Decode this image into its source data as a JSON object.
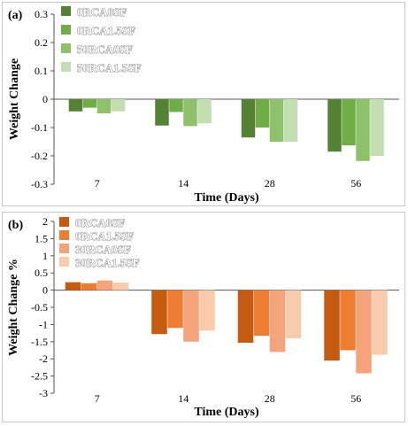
{
  "chart_data": [
    {
      "type": "bar",
      "panel_label": "(a)",
      "categories": [
        "7",
        "14",
        "28",
        "56"
      ],
      "series": [
        {
          "name": "0RCA0SF",
          "color": "#548235",
          "values": [
            -0.043,
            -0.093,
            -0.135,
            -0.185
          ]
        },
        {
          "name": "0RCA1.5SF",
          "color": "#70ad47",
          "values": [
            -0.03,
            -0.045,
            -0.1,
            -0.163
          ]
        },
        {
          "name": "50RCA0SF",
          "color": "#8dc26b",
          "values": [
            -0.05,
            -0.095,
            -0.15,
            -0.218
          ]
        },
        {
          "name": "50RCA1.5SF",
          "color": "#c3deb0",
          "values": [
            -0.043,
            -0.085,
            -0.15,
            -0.2
          ]
        }
      ],
      "yticks": [
        "0.3",
        "0.2",
        "0.1",
        "0",
        "-0.1",
        "-0.2",
        "-0.3"
      ],
      "ylim": [
        -0.3,
        0.3
      ],
      "xlabel": "Time (Days)",
      "ylabel": "Weight Change",
      "legend": "top-left",
      "grid": false
    },
    {
      "type": "bar",
      "panel_label": "(b)",
      "categories": [
        "7",
        "14",
        "28",
        "56"
      ],
      "series": [
        {
          "name": "0RCA0SF",
          "color": "#c55a11",
          "values": [
            0.23,
            -1.28,
            -1.53,
            -2.05
          ]
        },
        {
          "name": "0RCA1.5SF",
          "color": "#ed7d31",
          "values": [
            0.2,
            -1.1,
            -1.33,
            -1.75
          ]
        },
        {
          "name": "30RCA0SF",
          "color": "#f4a37a",
          "values": [
            0.28,
            -1.5,
            -1.8,
            -2.42
          ]
        },
        {
          "name": "30RCA1.5SF",
          "color": "#f8cbad",
          "values": [
            0.22,
            -1.18,
            -1.4,
            -1.88
          ]
        }
      ],
      "yticks": [
        "2",
        "1.5",
        "1",
        "0.5",
        "0",
        "-0.5",
        "-1",
        "-1.5",
        "-2",
        "-2.5",
        "-3"
      ],
      "ylim": [
        -3,
        2
      ],
      "xlabel": "Time (Days)",
      "ylabel": "Weight Change %",
      "legend": "top-left",
      "grid": false
    }
  ]
}
